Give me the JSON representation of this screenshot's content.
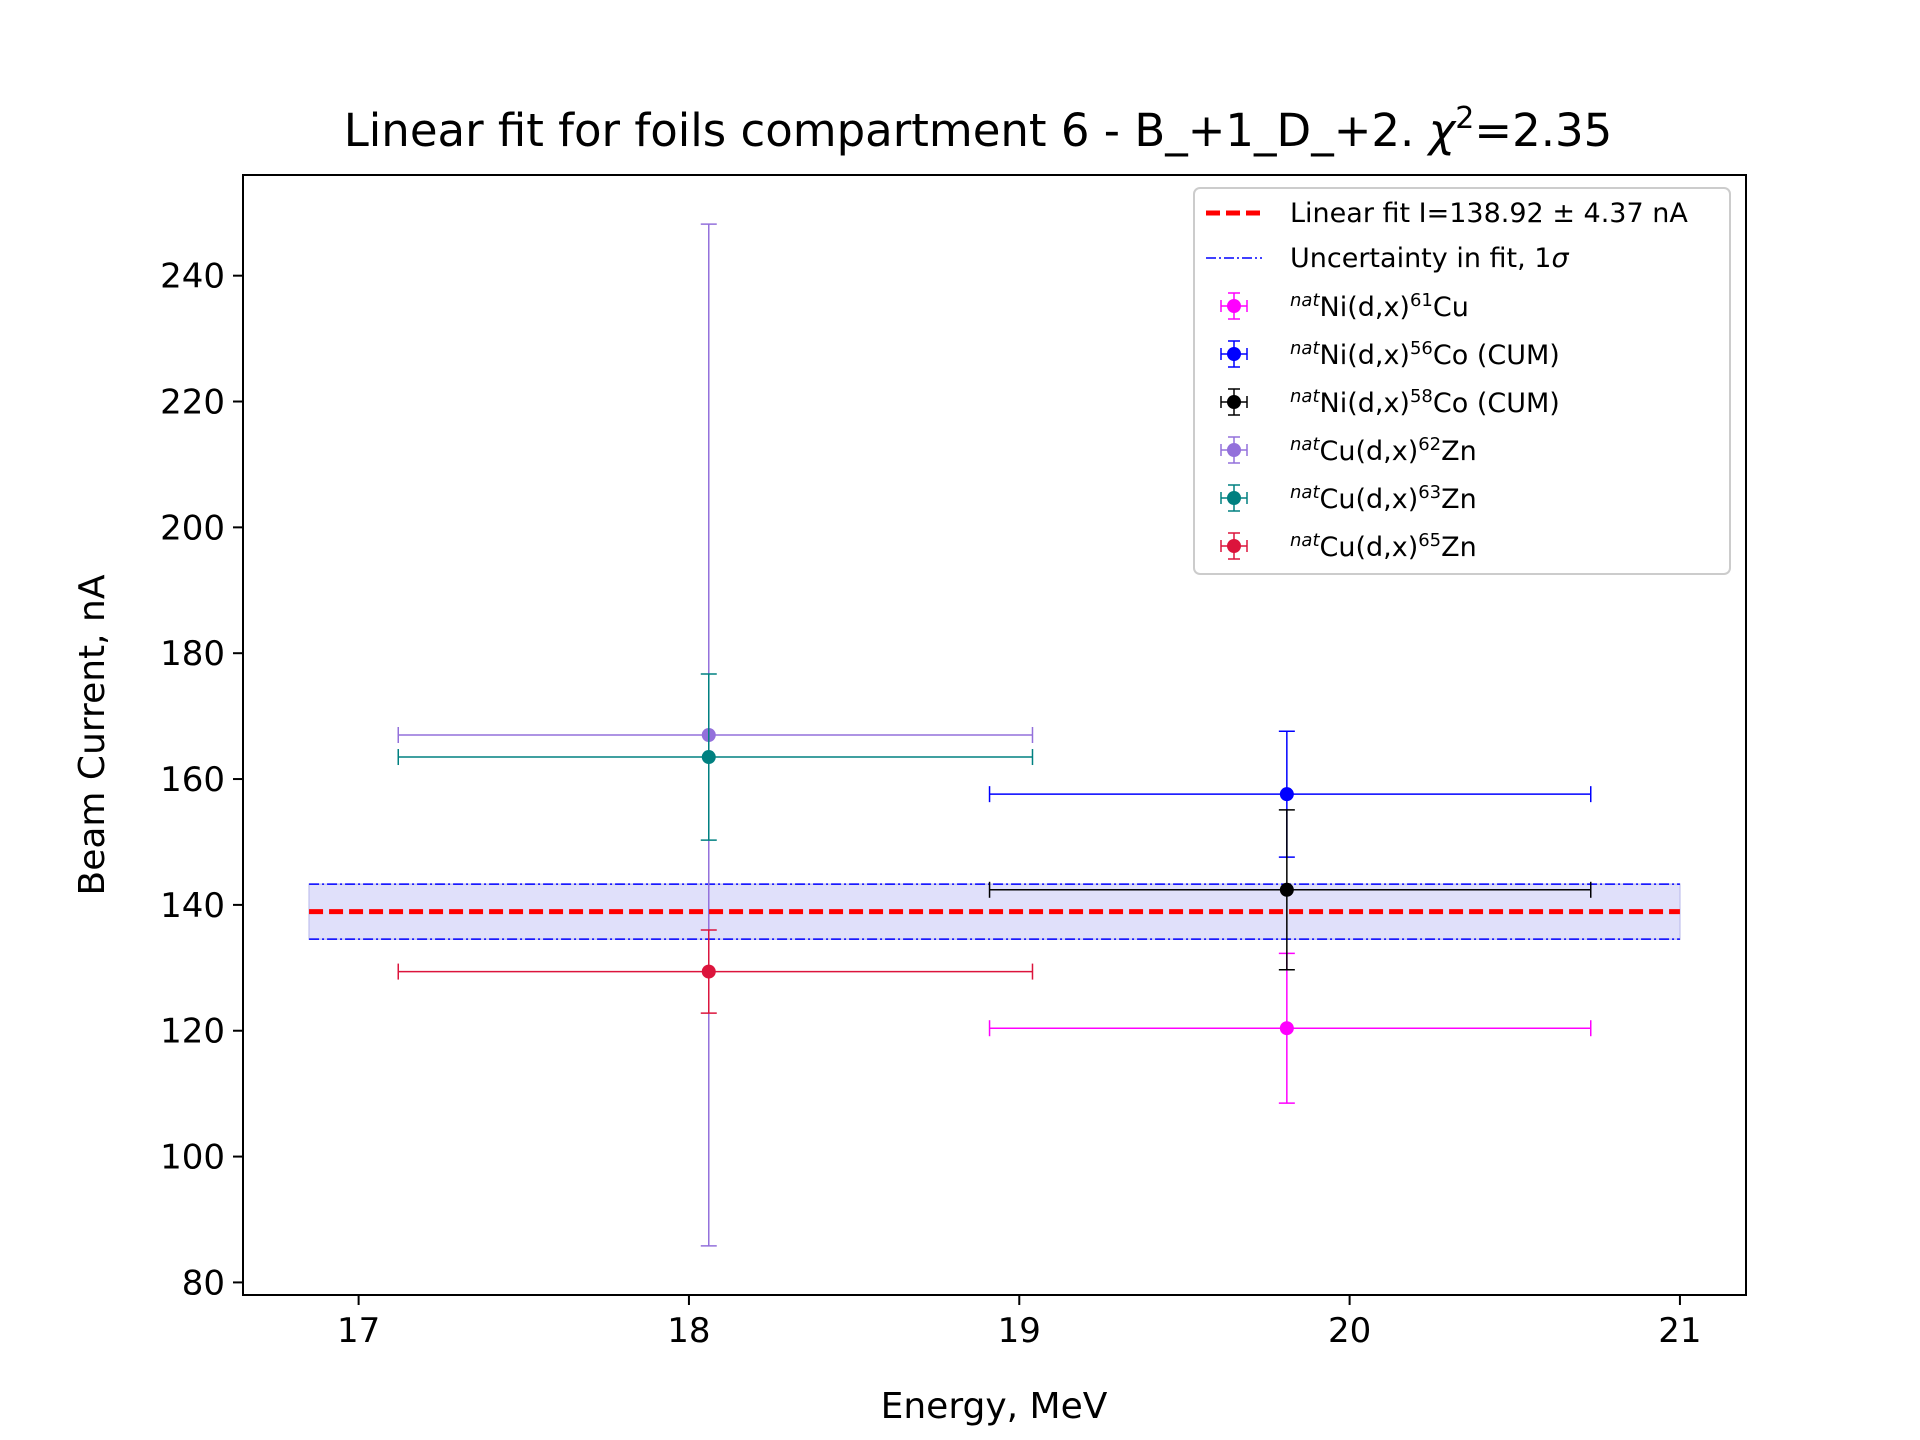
{
  "chart_data": {
    "type": "scatter",
    "title_prefix": "Linear fit for foils compartment 6 - B_+1_D_+2. ",
    "title_chi": "χ",
    "title_chi_exp": "2",
    "title_suffix": "=2.35",
    "xlabel": "Energy, MeV",
    "ylabel": "Beam Current, nA",
    "xlim": [
      16.65,
      21.2
    ],
    "ylim": [
      78,
      256
    ],
    "xticks": [
      17,
      18,
      19,
      20,
      21
    ],
    "yticks": [
      80,
      100,
      120,
      140,
      160,
      180,
      200,
      220,
      240
    ],
    "fit": {
      "label": "Linear fit I=138.92 ± 4.37 nA",
      "value": 138.92,
      "uncertainty": 4.37,
      "x_range": [
        16.85,
        21.0
      ],
      "color": "#ff0000"
    },
    "uncertainty_band": {
      "label_text": "Uncertainty in fit, 1",
      "label_sigma": "σ",
      "color": "#0000ff",
      "fill": "#e0e0fa"
    },
    "series": [
      {
        "name_sup1": "nat",
        "name_mid": "Ni(d,x)",
        "name_sup2": "61",
        "name_end": "Cu",
        "color": "#ff00ff",
        "x": 19.81,
        "y": 120.4,
        "xerr": [
          0.9,
          0.92
        ],
        "yerr": [
          11.9,
          11.9
        ]
      },
      {
        "name_sup1": "nat",
        "name_mid": "Ni(d,x)",
        "name_sup2": "56",
        "name_end": "Co (CUM)",
        "color": "#0000ff",
        "x": 19.81,
        "y": 157.6,
        "xerr": [
          0.9,
          0.92
        ],
        "yerr": [
          10.0,
          10.0
        ]
      },
      {
        "name_sup1": "nat",
        "name_mid": "Ni(d,x)",
        "name_sup2": "58",
        "name_end": "Co (CUM)",
        "color": "#000000",
        "x": 19.81,
        "y": 142.4,
        "xerr": [
          0.9,
          0.92
        ],
        "yerr": [
          12.7,
          12.7
        ]
      },
      {
        "name_sup1": "nat",
        "name_mid": "Cu(d,x)",
        "name_sup2": "62",
        "name_end": "Zn",
        "color": "#9370db",
        "x": 18.06,
        "y": 167.0,
        "xerr": [
          0.94,
          0.98
        ],
        "yerr": [
          81.2,
          81.2
        ]
      },
      {
        "name_sup1": "nat",
        "name_mid": "Cu(d,x)",
        "name_sup2": "63",
        "name_end": "Zn",
        "color": "#008080",
        "x": 18.06,
        "y": 163.5,
        "xerr": [
          0.94,
          0.98
        ],
        "yerr": [
          13.2,
          13.2
        ]
      },
      {
        "name_sup1": "nat",
        "name_mid": "Cu(d,x)",
        "name_sup2": "65",
        "name_end": "Zn",
        "color": "#dc143c",
        "x": 18.06,
        "y": 129.4,
        "xerr": [
          0.94,
          0.98
        ],
        "yerr": [
          6.6,
          6.6
        ]
      }
    ],
    "legend_position": "upper right",
    "grid": false
  }
}
